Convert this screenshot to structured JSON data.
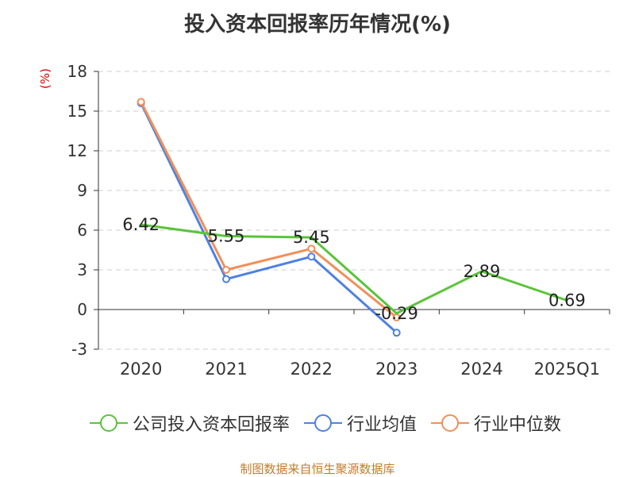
{
  "page": {
    "title": "投入资本回报率历年情况(%)",
    "y_unit": "(%)",
    "source": "制图数据来自恒生聚源数据库"
  },
  "chart_data": {
    "type": "line",
    "categories": [
      "2020",
      "2021",
      "2022",
      "2023",
      "2024",
      "2025Q1"
    ],
    "yticks": [
      18,
      15,
      12,
      9,
      6,
      3,
      0,
      -3
    ],
    "ylim": [
      -3,
      18
    ],
    "grid": true,
    "legend_position": "bottom",
    "series": [
      {
        "name": "公司投入资本回报率",
        "color": "#5ac43a",
        "values": [
          6.42,
          5.55,
          5.45,
          -0.29,
          2.89,
          0.69
        ],
        "labels": [
          "6.42",
          "5.55",
          "5.45",
          "-0.29",
          "2.89",
          "0.69"
        ]
      },
      {
        "name": "行业均值",
        "color": "#4f81e0",
        "values": [
          15.6,
          2.3,
          4.0,
          -1.75,
          null,
          null
        ]
      },
      {
        "name": "行业中位数",
        "color": "#f0905a",
        "values": [
          15.7,
          3.0,
          4.6,
          -0.6,
          null,
          null
        ]
      }
    ]
  }
}
